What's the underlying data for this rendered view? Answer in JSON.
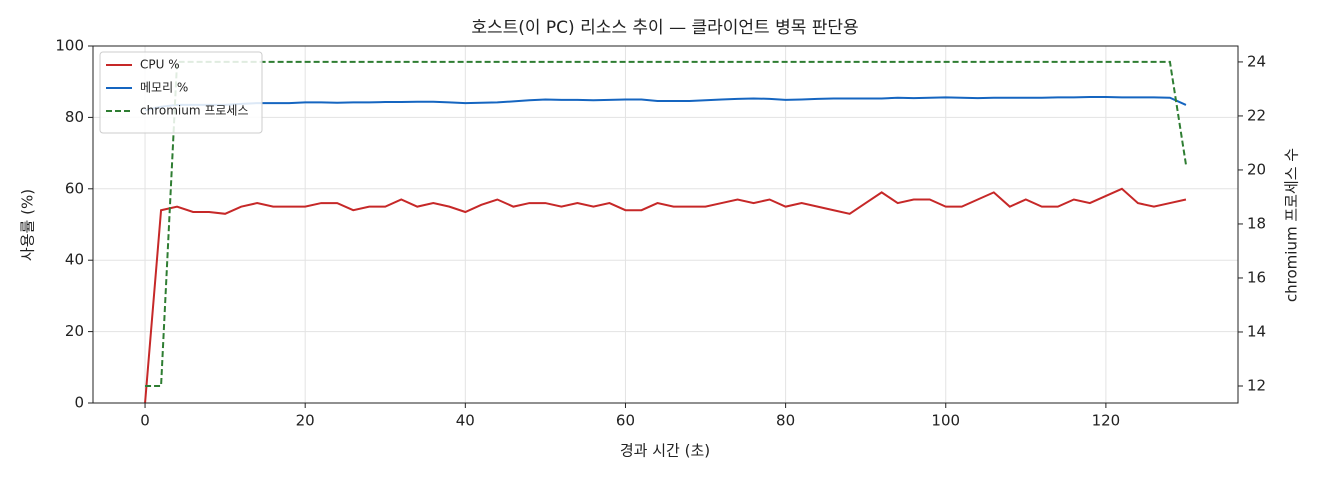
{
  "chart_data": {
    "type": "line",
    "title": "호스트(이 PC) 리소스 추이 — 클라이언트 병목 판단용",
    "x_label": "경과 시간 (초)",
    "y_label": "사용률 (%)",
    "y2_label": "chromium 프로세스 수",
    "x": [
      0,
      2,
      4,
      6,
      8,
      10,
      12,
      14,
      16,
      18,
      20,
      22,
      24,
      26,
      28,
      30,
      32,
      34,
      36,
      38,
      40,
      42,
      44,
      46,
      48,
      50,
      52,
      54,
      56,
      58,
      60,
      62,
      64,
      66,
      68,
      70,
      72,
      74,
      76,
      78,
      80,
      82,
      84,
      86,
      88,
      90,
      92,
      94,
      96,
      98,
      100,
      102,
      104,
      106,
      108,
      110,
      112,
      114,
      116,
      118,
      120,
      122,
      124,
      126,
      128,
      130
    ],
    "series": [
      {
        "name": "CPU %",
        "color": "#c62828",
        "linestyle": "solid",
        "values": [
          0,
          54,
          55,
          53.5,
          53.5,
          53,
          55,
          56,
          55,
          55,
          55,
          56,
          56,
          54,
          55,
          55,
          57,
          55,
          56,
          55,
          53.5,
          55.5,
          57,
          55,
          56,
          56,
          55,
          56,
          55,
          56,
          54,
          54,
          56,
          55,
          55,
          55,
          56,
          57,
          56,
          57,
          55,
          56,
          55,
          54,
          53,
          56,
          59,
          56,
          57,
          57,
          55,
          55,
          57,
          59,
          55,
          57,
          55,
          55,
          57,
          56,
          58,
          60,
          56,
          55,
          56,
          57
        ]
      },
      {
        "name": "메모리 %",
        "color": "#1565c0",
        "linestyle": "solid",
        "values": [
          82,
          83,
          83.5,
          83.5,
          83.5,
          83.5,
          83.8,
          84,
          84,
          84,
          84.2,
          84.2,
          84.1,
          84.2,
          84.2,
          84.3,
          84.3,
          84.4,
          84.4,
          84.2,
          84,
          84.1,
          84.2,
          84.5,
          84.8,
          85,
          84.9,
          84.9,
          84.8,
          84.9,
          85,
          85,
          84.6,
          84.6,
          84.6,
          84.8,
          85,
          85.2,
          85.3,
          85.2,
          84.9,
          85,
          85.2,
          85.3,
          85.3,
          85.3,
          85.3,
          85.5,
          85.4,
          85.5,
          85.6,
          85.5,
          85.4,
          85.5,
          85.5,
          85.5,
          85.5,
          85.6,
          85.6,
          85.7,
          85.7,
          85.6,
          85.6,
          85.6,
          85.5,
          83.5
        ]
      },
      {
        "name": "chromium 프로세스",
        "color": "#2e7d32",
        "linestyle": "dashed",
        "axis": "y2",
        "values": [
          12,
          12,
          24,
          24,
          24,
          24,
          24,
          24,
          24,
          24,
          24,
          24,
          24,
          24,
          24,
          24,
          24,
          24,
          24,
          24,
          24,
          24,
          24,
          24,
          24,
          24,
          24,
          24,
          24,
          24,
          24,
          24,
          24,
          24,
          24,
          24,
          24,
          24,
          24,
          24,
          24,
          24,
          24,
          24,
          24,
          24,
          24,
          24,
          24,
          24,
          24,
          24,
          24,
          24,
          24,
          24,
          24,
          24,
          24,
          24,
          24,
          24,
          24,
          24,
          24,
          20.2
        ]
      }
    ],
    "xlim": [
      -6.5,
      136.5
    ],
    "xticks": [
      0,
      20,
      40,
      60,
      80,
      100,
      120
    ],
    "ylim": [
      0,
      100
    ],
    "yticks": [
      0,
      20,
      40,
      60,
      80,
      100
    ],
    "y2lim": [
      11.37,
      24.59
    ],
    "y2ticks": [
      12,
      14,
      16,
      18,
      20,
      22,
      24
    ],
    "grid": true,
    "legend": "upper-left"
  }
}
